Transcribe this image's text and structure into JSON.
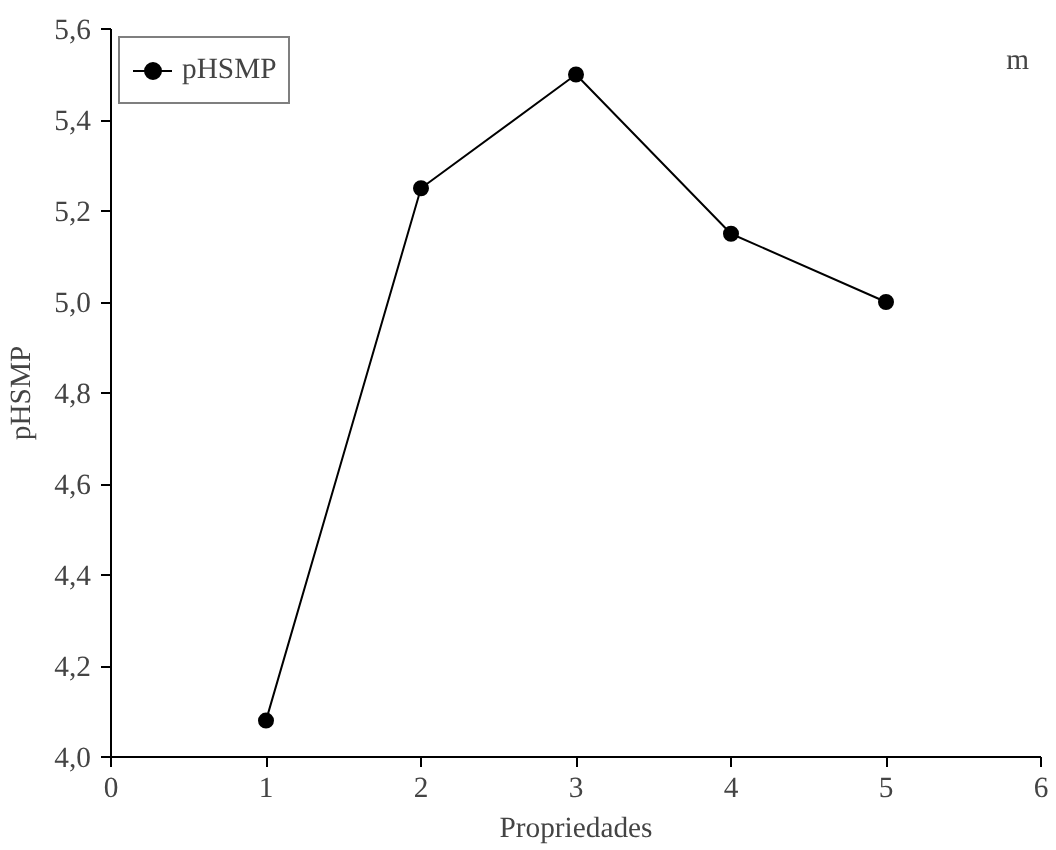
{
  "chart_data": {
    "type": "line",
    "xlabel": "Propriedades",
    "ylabel": "pHSMP",
    "annotations": [
      "m"
    ],
    "x": [
      1,
      2,
      3,
      4,
      5
    ],
    "series": [
      {
        "name": "pHSMP",
        "color": "#000000",
        "values": [
          4.08,
          5.25,
          5.5,
          5.15,
          5.0
        ]
      }
    ],
    "xlim": [
      0,
      6
    ],
    "xticks": [
      0,
      1,
      2,
      3,
      4,
      5,
      6
    ],
    "ylim": [
      4.0,
      5.6
    ],
    "yticks": [
      {
        "value": 4.0,
        "label": "4,0"
      },
      {
        "value": 4.2,
        "label": "4,2"
      },
      {
        "value": 4.4,
        "label": "4,4"
      },
      {
        "value": 4.6,
        "label": "4,6"
      },
      {
        "value": 4.8,
        "label": "4,8"
      },
      {
        "value": 5.0,
        "label": "5,0"
      },
      {
        "value": 5.2,
        "label": "5,2"
      },
      {
        "value": 5.4,
        "label": "5,4"
      },
      {
        "value": 5.6,
        "label": "5,6"
      }
    ],
    "grid": false,
    "legend": "top left",
    "marker": "circle",
    "line_style": "solid"
  }
}
